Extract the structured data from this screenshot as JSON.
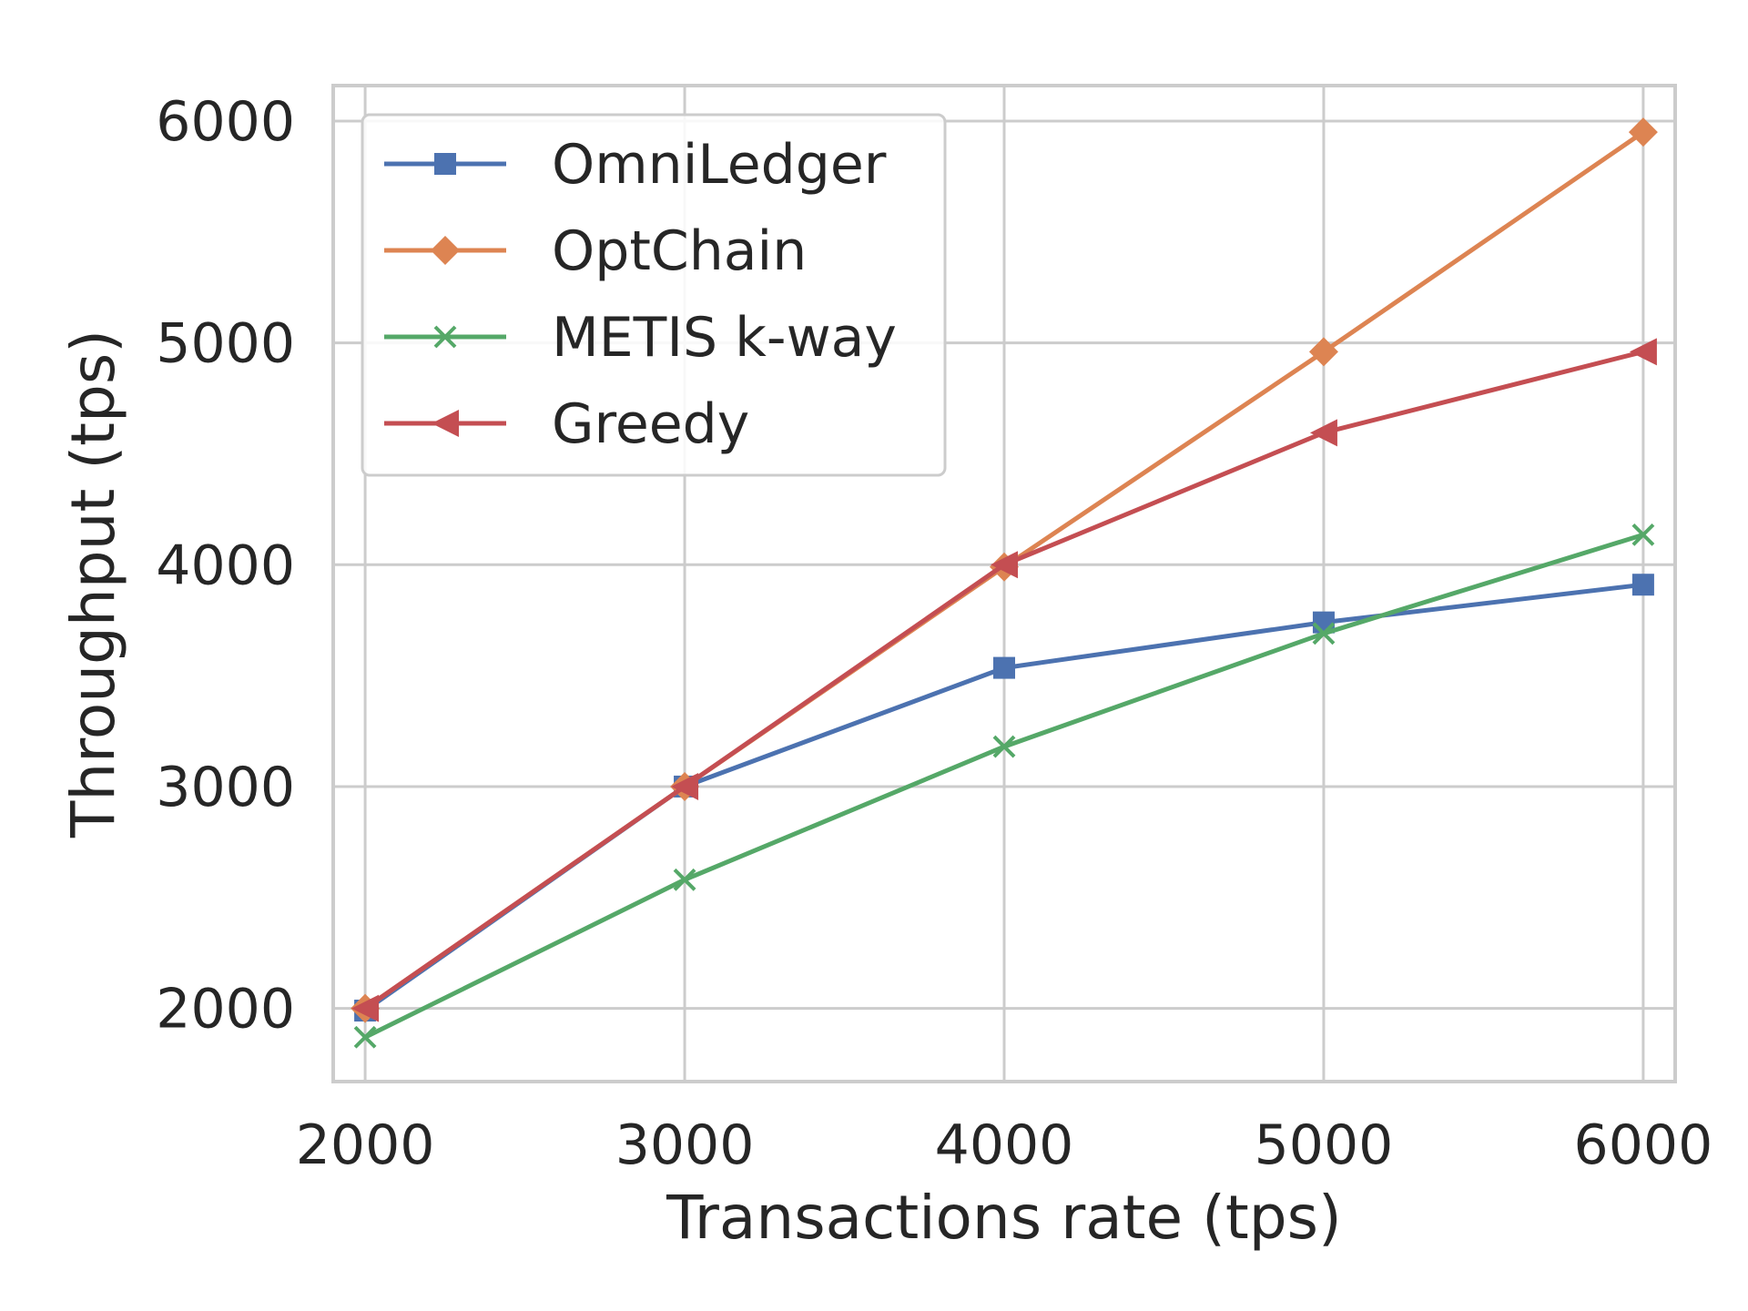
{
  "chart_data": {
    "type": "line",
    "title": "",
    "xlabel": "Transactions rate (tps)",
    "ylabel": "Throughput (tps)",
    "x": [
      2000,
      3000,
      4000,
      5000,
      6000
    ],
    "xticks": [
      "2000",
      "3000",
      "4000",
      "5000",
      "6000"
    ],
    "yticks": [
      "2000",
      "3000",
      "4000",
      "5000",
      "6000"
    ],
    "xlim": [
      1900,
      6100
    ],
    "ylim": [
      1670,
      6160
    ],
    "grid": true,
    "legend_position": "upper-left",
    "series": [
      {
        "name": "OmniLedger",
        "color": "#4c72b0",
        "marker": "square",
        "values": [
          1990,
          3000,
          3535,
          3740,
          3910
        ]
      },
      {
        "name": "OptChain",
        "color": "#dd8452",
        "marker": "diamond",
        "values": [
          2000,
          3000,
          3990,
          4960,
          5950
        ]
      },
      {
        "name": "METIS k-way",
        "color": "#55a868",
        "marker": "x",
        "values": [
          1870,
          2580,
          3180,
          3690,
          4135
        ]
      },
      {
        "name": "Greedy",
        "color": "#c44e52",
        "marker": "triangle-left",
        "values": [
          2000,
          3000,
          4000,
          4595,
          4960
        ]
      }
    ]
  }
}
